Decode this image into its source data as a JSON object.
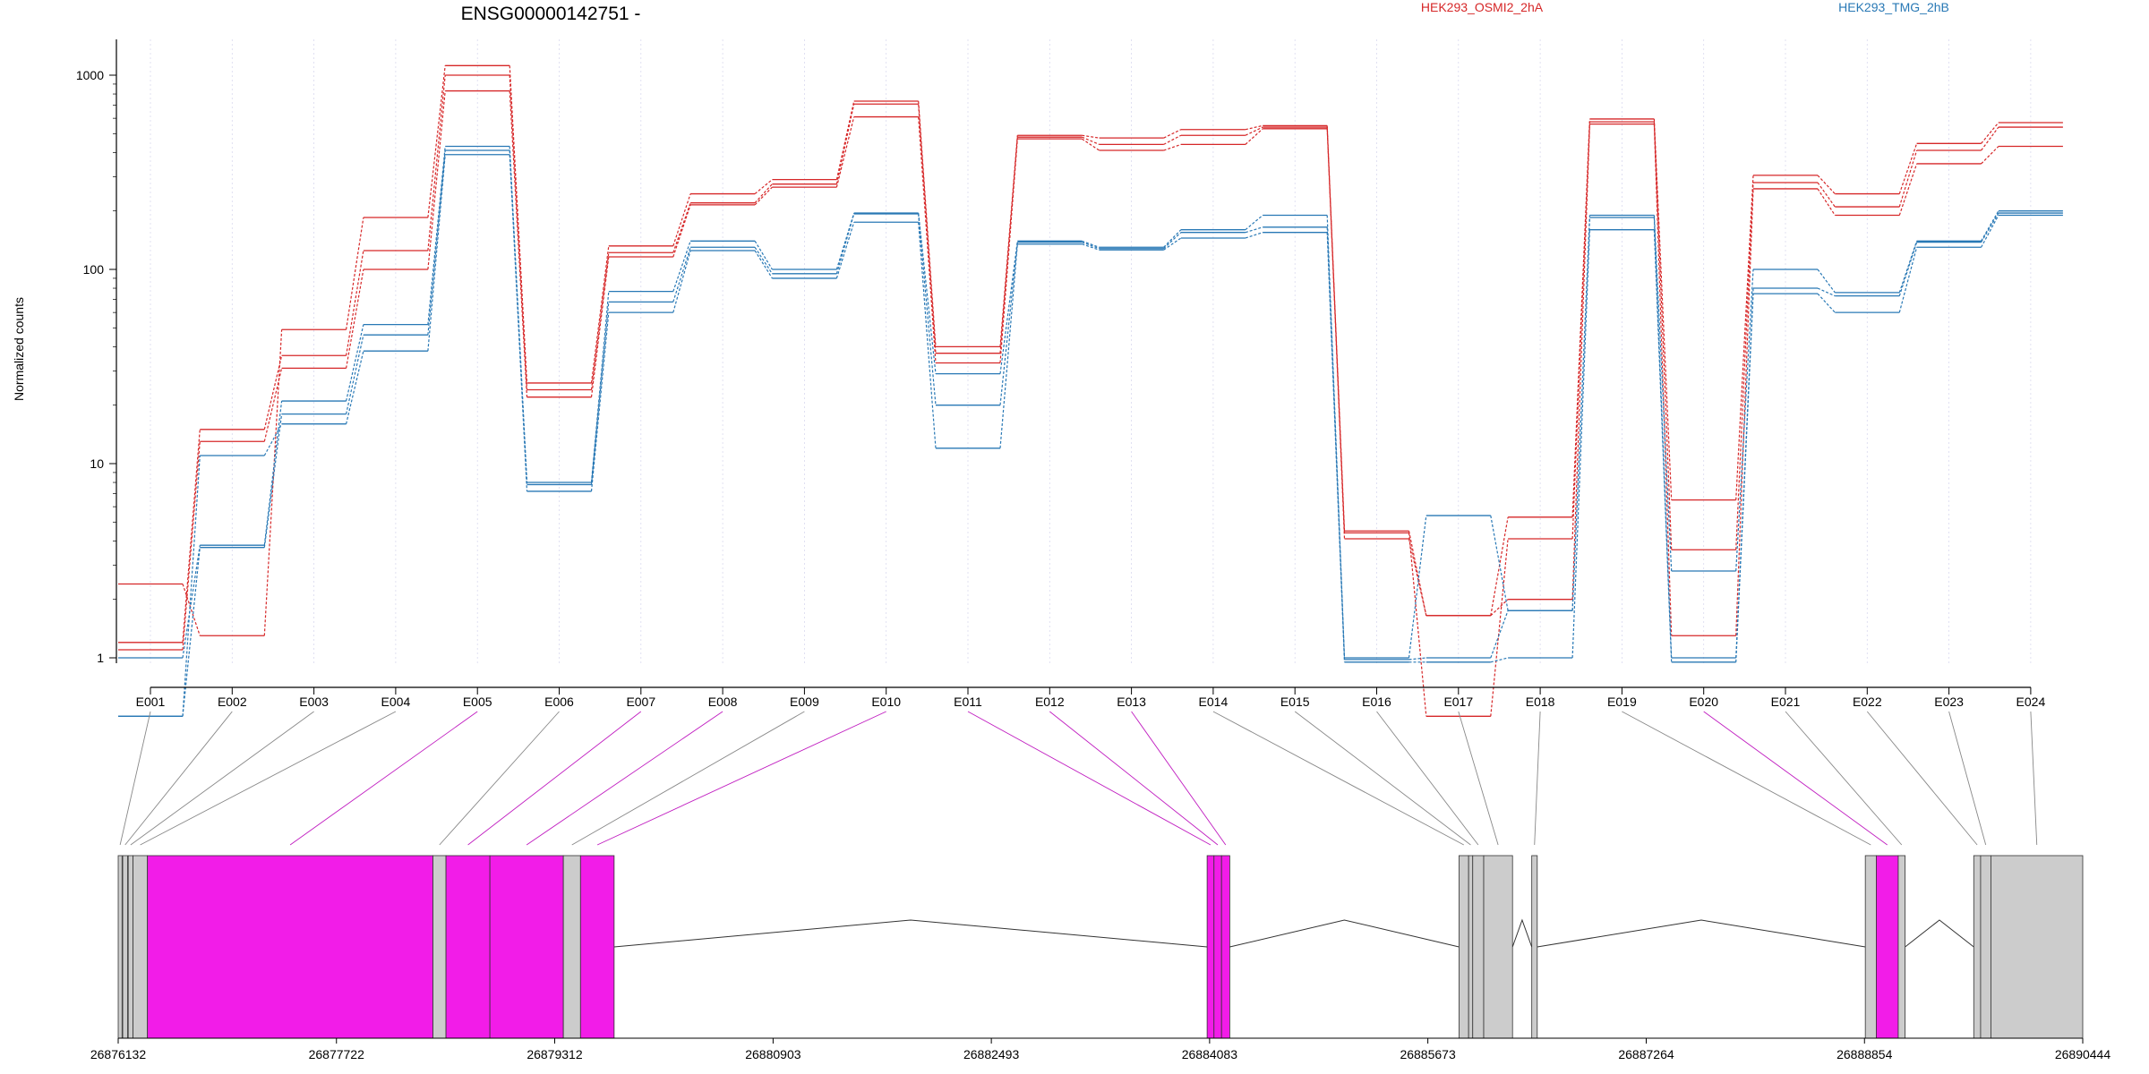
{
  "chart_data": {
    "type": "line",
    "title": "ENSG00000142751 -",
    "ylabel": "Normalized counts",
    "yscale": "log",
    "ylim": [
      0.5,
      1500
    ],
    "yticks": [
      "1",
      "10",
      "100",
      "1000"
    ],
    "grid": "vertical dotted at each exon",
    "categories": [
      "E001",
      "E002",
      "E003",
      "E004",
      "E005",
      "E006",
      "E007",
      "E008",
      "E009",
      "E010",
      "E011",
      "E012",
      "E013",
      "E014",
      "E015",
      "E016",
      "E017",
      "E018",
      "E019",
      "E020",
      "E021",
      "E022",
      "E023",
      "E024"
    ],
    "legend": [
      {
        "label": "HEK293_OSMI2_2hA",
        "color": "#d62728",
        "position": "top-center"
      },
      {
        "label": "HEK293_TMG_2hB",
        "color": "#2878b5",
        "position": "top-right"
      }
    ],
    "series": [
      {
        "group": "HEK293_OSMI2_2hA",
        "color": "#d62728",
        "values": [
          2.4,
          1.3,
          49,
          185,
          1120,
          26,
          132,
          245,
          290,
          735,
          40,
          490,
          475,
          525,
          550,
          4.5,
          1.65,
          5.3,
          595,
          6.5,
          305,
          245,
          445,
          570
        ]
      },
      {
        "group": "HEK293_OSMI2_2hA",
        "color": "#d62728",
        "values": [
          1.2,
          15,
          36,
          125,
          1000,
          24,
          122,
          220,
          275,
          710,
          37,
          480,
          440,
          490,
          540,
          4.4,
          0.5,
          4.1,
          575,
          3.6,
          280,
          210,
          410,
          540
        ]
      },
      {
        "group": "HEK293_OSMI2_2hA",
        "color": "#d62728",
        "values": [
          1.1,
          13,
          31,
          100,
          830,
          22,
          116,
          215,
          265,
          610,
          33,
          470,
          410,
          440,
          530,
          4.1,
          1.65,
          2.0,
          560,
          1.3,
          260,
          190,
          350,
          430
        ]
      },
      {
        "group": "HEK293_TMG_2hB",
        "color": "#2878b5",
        "values": [
          1.0,
          3.8,
          21,
          52,
          430,
          8.0,
          77,
          140,
          100,
          195,
          29,
          140,
          130,
          160,
          190,
          1.0,
          5.4,
          1.75,
          190,
          2.8,
          100,
          76,
          140,
          200
        ]
      },
      {
        "group": "HEK293_TMG_2hB",
        "color": "#2878b5",
        "values": [
          0.5,
          3.7,
          18,
          46,
          410,
          7.8,
          68,
          130,
          95,
          193,
          20,
          138,
          128,
          155,
          165,
          0.98,
          1.0,
          1.75,
          185,
          1.0,
          80,
          73,
          138,
          195
        ]
      },
      {
        "group": "HEK293_TMG_2hB",
        "color": "#2878b5",
        "values": [
          0.5,
          11,
          16,
          38,
          390,
          7.2,
          60,
          125,
          90,
          175,
          12,
          135,
          126,
          145,
          155,
          0.95,
          0.95,
          1.0,
          160,
          0.95,
          75,
          60,
          130,
          190
        ]
      }
    ],
    "gene_model": {
      "coordinate_ticks": [
        "26876132",
        "26877722",
        "26879312",
        "26880903",
        "26882493",
        "26884083",
        "26885673",
        "26887264",
        "26888854",
        "26890444"
      ],
      "range": [
        26876132,
        26890444
      ],
      "colors": {
        "significant": "#f21ce8",
        "normal": "#cccccc",
        "outline": "#333333"
      },
      "exon_segments": [
        {
          "exon": "E001",
          "start": 26876132,
          "end": 26876160,
          "highlight": false
        },
        {
          "exon": "E002",
          "start": 26876165,
          "end": 26876200,
          "highlight": false
        },
        {
          "exon": "E003",
          "start": 26876205,
          "end": 26876240,
          "highlight": false
        },
        {
          "exon": "E004",
          "start": 26876240,
          "end": 26876345,
          "highlight": false
        },
        {
          "exon": "E005",
          "start": 26876345,
          "end": 26878425,
          "highlight": true
        },
        {
          "exon": "E006",
          "start": 26878425,
          "end": 26878520,
          "highlight": false
        },
        {
          "exon": "E007",
          "start": 26878520,
          "end": 26878840,
          "highlight": true
        },
        {
          "exon": "E008",
          "start": 26878840,
          "end": 26879375,
          "highlight": true
        },
        {
          "exon": "E009",
          "start": 26879375,
          "end": 26879500,
          "highlight": false
        },
        {
          "exon": "E010",
          "start": 26879500,
          "end": 26879745,
          "highlight": true
        },
        {
          "exon": "E011",
          "start": 26884065,
          "end": 26884115,
          "highlight": true
        },
        {
          "exon": "E012",
          "start": 26884115,
          "end": 26884170,
          "highlight": true
        },
        {
          "exon": "E013",
          "start": 26884170,
          "end": 26884230,
          "highlight": true
        },
        {
          "exon": "E014",
          "start": 26885900,
          "end": 26885970,
          "highlight": false
        },
        {
          "exon": "E015",
          "start": 26885970,
          "end": 26886000,
          "highlight": false
        },
        {
          "exon": "E016",
          "start": 26886000,
          "end": 26886080,
          "highlight": false
        },
        {
          "exon": "E017",
          "start": 26886080,
          "end": 26886290,
          "highlight": false
        },
        {
          "exon": "E018",
          "start": 26886430,
          "end": 26886470,
          "highlight": false
        },
        {
          "exon": "E019",
          "start": 26888860,
          "end": 26888940,
          "highlight": false
        },
        {
          "exon": "E020",
          "start": 26888940,
          "end": 26889100,
          "highlight": true
        },
        {
          "exon": "E021",
          "start": 26889100,
          "end": 26889150,
          "highlight": false
        },
        {
          "exon": "E022",
          "start": 26889650,
          "end": 26889700,
          "highlight": false
        },
        {
          "exon": "E023",
          "start": 26889700,
          "end": 26889775,
          "highlight": false
        },
        {
          "exon": "E024",
          "start": 26889775,
          "end": 26890444,
          "highlight": false
        }
      ],
      "introns": [
        {
          "start": 26879745,
          "end": 26884065
        },
        {
          "start": 26884230,
          "end": 26885900
        },
        {
          "start": 26886290,
          "end": 26886430
        },
        {
          "start": 26886470,
          "end": 26888860
        },
        {
          "start": 26889150,
          "end": 26889650
        }
      ]
    }
  }
}
